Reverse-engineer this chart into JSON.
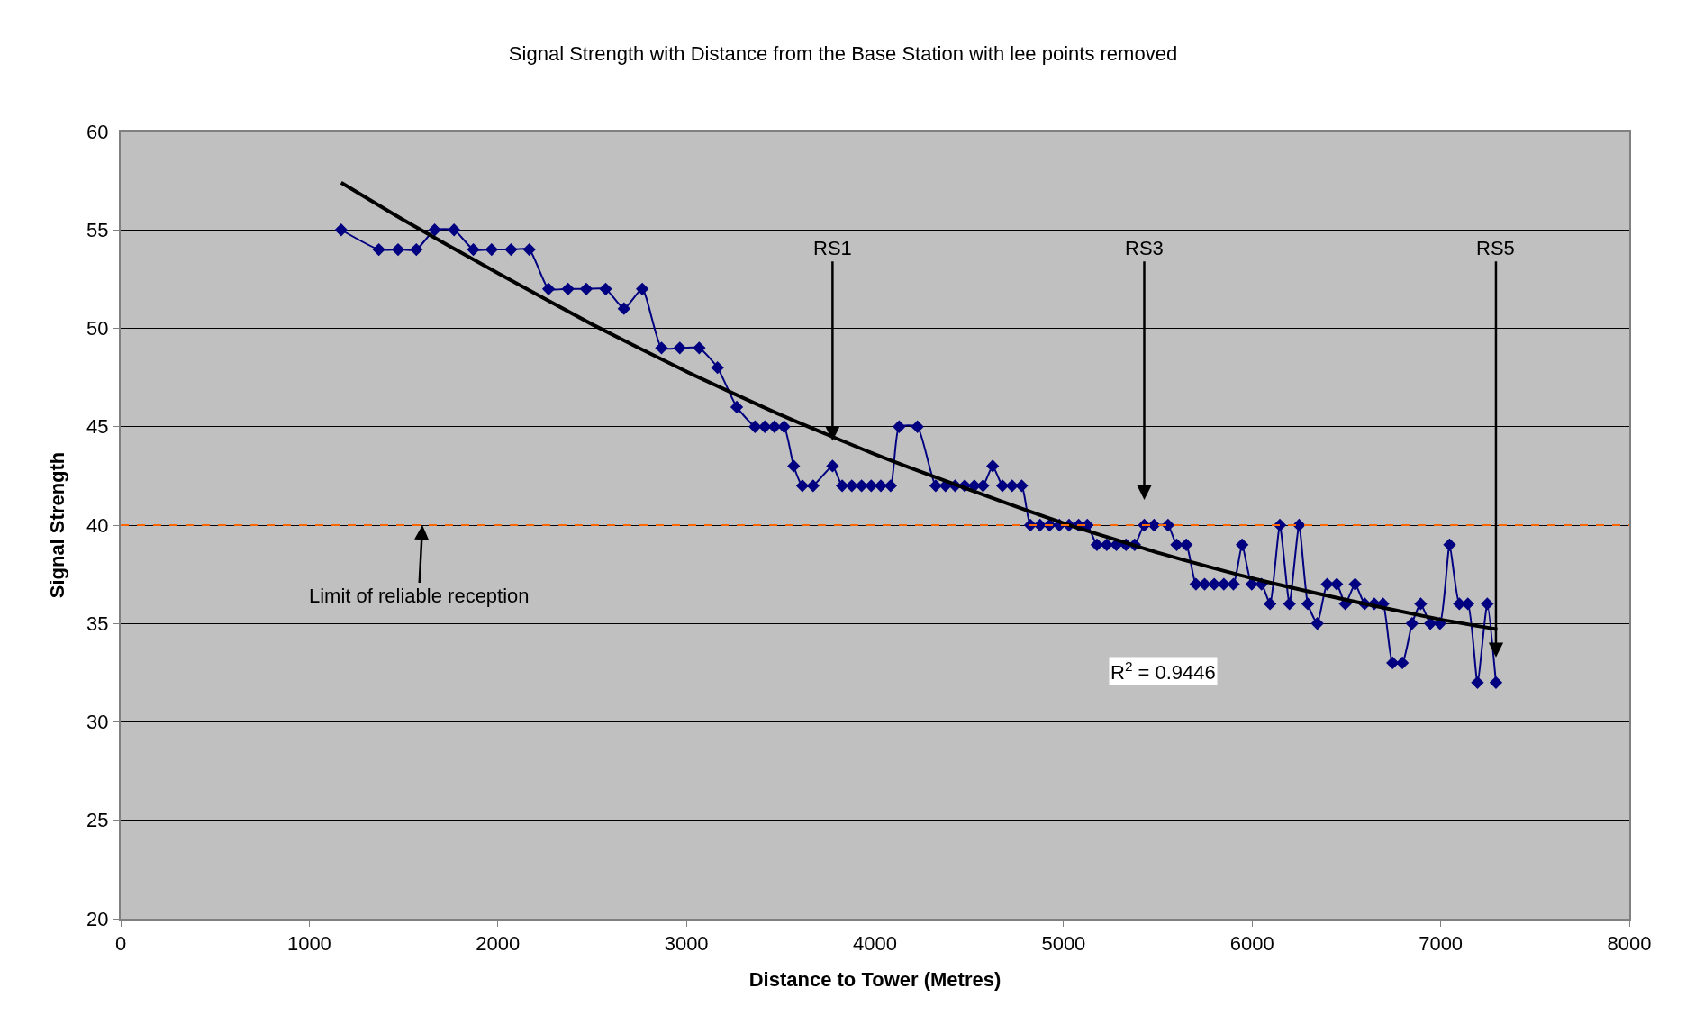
{
  "chart_data": {
    "type": "line",
    "title": "Signal Strength with Distance from the Base Station with lee points removed",
    "xlabel": "Distance to Tower (Metres)",
    "ylabel": "Signal Strength",
    "xlim": [
      0,
      8000
    ],
    "xticks": [
      0,
      1000,
      2000,
      3000,
      4000,
      5000,
      6000,
      7000,
      8000
    ],
    "ylim": [
      20,
      60
    ],
    "yticks": [
      20,
      25,
      30,
      35,
      40,
      45,
      50,
      55,
      60
    ],
    "grid": "y",
    "marker": "diamond",
    "line_style": "solid",
    "series": [
      {
        "color": "#000080",
        "x": [
          1169,
          1369,
          1471,
          1568,
          1665,
          1768,
          1870,
          1967,
          2070,
          2167,
          2269,
          2372,
          2469,
          2572,
          2669,
          2766,
          2868,
          2965,
          3068,
          3165,
          3267,
          3364,
          3416,
          3467,
          3518,
          3569,
          3615,
          3672,
          3775,
          3826,
          3877,
          3929,
          3980,
          4031,
          4083,
          4128,
          4225,
          4322,
          4374,
          4425,
          4476,
          4527,
          4573,
          4624,
          4676,
          4727,
          4778,
          4824,
          4875,
          4926,
          4978,
          5029,
          5080,
          5126,
          5177,
          5229,
          5280,
          5331,
          5377,
          5428,
          5480,
          5554,
          5600,
          5651,
          5702,
          5748,
          5799,
          5850,
          5901,
          5947,
          5998,
          6050,
          6095,
          6147,
          6198,
          6249,
          6295,
          6346,
          6398,
          6449,
          6494,
          6546,
          6597,
          6648,
          6694,
          6745,
          6797,
          6848,
          6894,
          6945,
          6996,
          7047,
          7099,
          7144,
          7195,
          7247,
          7293
        ],
        "values": [
          55,
          54,
          54,
          54,
          55,
          55,
          54,
          54,
          54,
          54,
          52,
          52,
          52,
          52,
          51,
          52,
          49,
          49,
          49,
          48,
          46,
          45,
          45,
          45,
          45,
          43,
          42,
          42,
          43,
          42,
          42,
          42,
          42,
          42,
          42,
          45,
          45,
          42,
          42,
          42,
          42,
          42,
          42,
          43,
          42,
          42,
          42,
          40,
          40,
          40,
          40,
          40,
          40,
          40,
          39,
          39,
          39,
          39,
          39,
          40,
          40,
          40,
          39,
          39,
          37,
          37,
          37,
          37,
          37,
          39,
          37,
          37,
          36,
          40,
          36,
          40,
          36,
          35,
          37,
          37,
          36,
          37,
          36,
          36,
          36,
          33,
          33,
          35,
          36,
          35,
          35,
          39,
          36,
          36,
          32,
          36,
          32
        ]
      },
      {
        "type": "line",
        "color": "#000000",
        "marker": "none",
        "x": [
          1169,
          1500,
          2000,
          2500,
          3000,
          3500,
          4000,
          4500,
          5000,
          5500,
          6000,
          6500,
          7000,
          7300
        ],
        "values": [
          57.4,
          55.5,
          52.8,
          50.2,
          47.8,
          45.6,
          43.6,
          41.8,
          40.1,
          38.6,
          37.3,
          36.2,
          35.2,
          34.7
        ]
      }
    ],
    "ref_lines": [
      {
        "axis": "y",
        "value": 40,
        "color": "#ff6600",
        "line_style": "dashed"
      }
    ],
    "annotations": [
      {
        "text": "RS1",
        "x": 3775,
        "y": 43
      },
      {
        "text": "RS3",
        "x": 5428,
        "y": 40
      },
      {
        "text": "RS5",
        "x": 7293,
        "y": 32
      },
      {
        "text": "Limit of reliable reception",
        "x": 1600,
        "y": 40
      },
      "R$^{2}$ = 0.9446"
    ]
  }
}
